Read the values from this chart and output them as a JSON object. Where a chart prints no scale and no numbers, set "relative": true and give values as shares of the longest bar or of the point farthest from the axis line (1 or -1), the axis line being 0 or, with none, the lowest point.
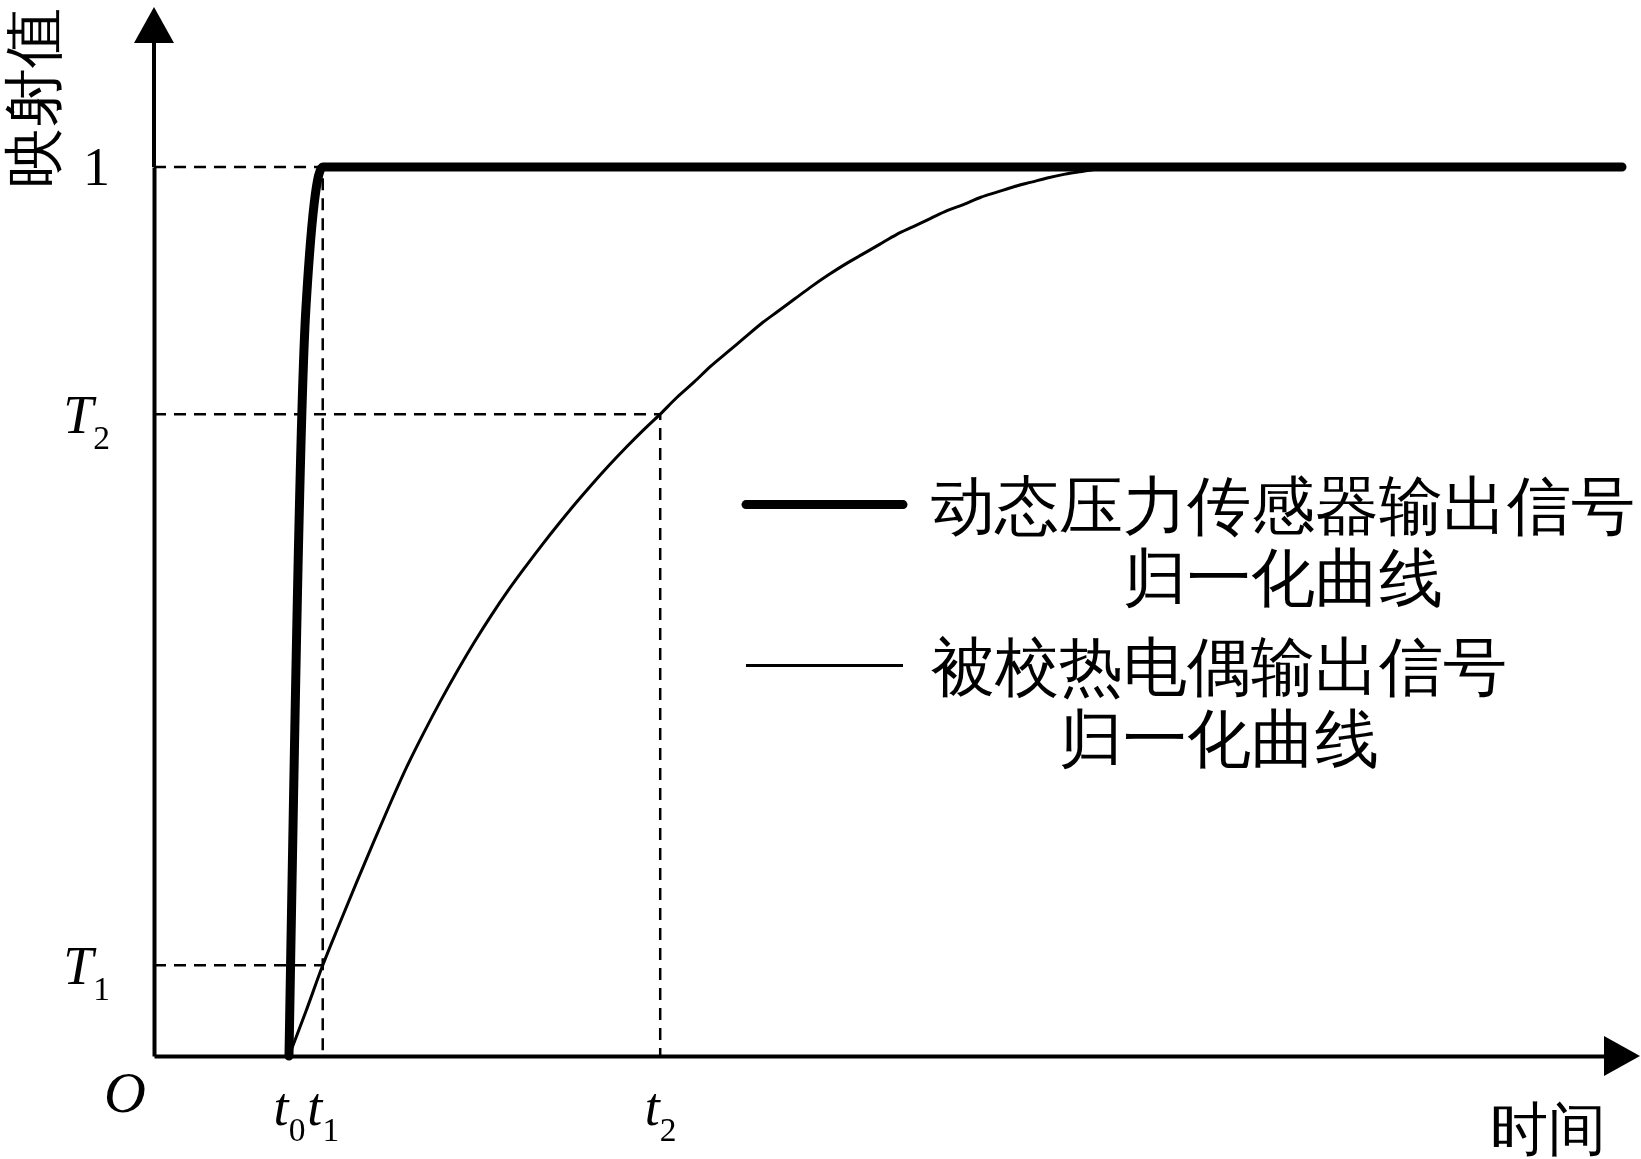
{
  "chart_data": {
    "type": "line",
    "xlabel": "时间",
    "ylabel": "映射值",
    "relative": true,
    "annotations": [
      "O"
    ],
    "legend": "right",
    "categories": [
      null,
      null,
      null,
      null,
      null,
      null,
      null,
      null,
      "t$_{0}$",
      null,
      "t$_{1}$",
      null,
      null,
      null,
      null,
      null,
      null,
      null,
      null,
      null,
      null,
      null,
      null,
      null,
      null,
      null,
      null,
      null,
      null,
      null,
      "t$_{2}$",
      null,
      null,
      null,
      null,
      null,
      null,
      null,
      null,
      null,
      null,
      null,
      null,
      null,
      null,
      null,
      null,
      null,
      null,
      null,
      null,
      null,
      null,
      null,
      null,
      null,
      null,
      null,
      null,
      null,
      null,
      null,
      null,
      null,
      null,
      null,
      null,
      null,
      null,
      null,
      null,
      null,
      null,
      null,
      null,
      null,
      null,
      null,
      null,
      null,
      null,
      null,
      null,
      null,
      null,
      null,
      null,
      null
    ],
    "series": [
      {
        "name": "动态压力传感器输出信号归一化曲线",
        "color": "#000000",
        "values": [
          null,
          null,
          null,
          null,
          null,
          null,
          null,
          null,
          0,
          0.84,
          1,
          1,
          1,
          1,
          1,
          1,
          1,
          1,
          1,
          1,
          1,
          1,
          1,
          1,
          1,
          1,
          1,
          1,
          1,
          1,
          1,
          1,
          1,
          1,
          1,
          1,
          1,
          1,
          1,
          1,
          1,
          1,
          1,
          1,
          1,
          1,
          1,
          1,
          1,
          1,
          1,
          1,
          1,
          1,
          1,
          1,
          1,
          1,
          1,
          1,
          1,
          1,
          1,
          1,
          1,
          1,
          1,
          1,
          1,
          1,
          1,
          1,
          1,
          1,
          1,
          1,
          1,
          1,
          1,
          1,
          1,
          1,
          1,
          1,
          1,
          1,
          1,
          1
        ]
      },
      {
        "name": "被校热电偶输出信号归一化曲线",
        "color": "#000000",
        "values": [
          null,
          null,
          null,
          null,
          null,
          null,
          null,
          null,
          0,
          0.05,
          0.102,
          0.149,
          0.195,
          0.24,
          0.284,
          0.326,
          0.364,
          0.4,
          0.434,
          0.466,
          0.496,
          0.524,
          0.55,
          0.575,
          0.599,
          0.622,
          0.644,
          0.665,
          0.685,
          0.704,
          0.722,
          0.741,
          0.758,
          0.776,
          0.792,
          0.808,
          0.824,
          0.838,
          0.852,
          0.866,
          0.879,
          0.891,
          0.902,
          0.913,
          0.924,
          0.933,
          0.942,
          0.951,
          0.958,
          0.966,
          0.972,
          0.978,
          0.983,
          0.988,
          0.992,
          0.995,
          0.998,
          1,
          null,
          null,
          null,
          null,
          null,
          null,
          null,
          null,
          null,
          null,
          null,
          null,
          null,
          null,
          null,
          null,
          null,
          null,
          null,
          null,
          null,
          null,
          null,
          null,
          null,
          null,
          null,
          null,
          null,
          null
        ]
      },
      {
        "name": "1",
        "type": "step",
        "color": "#000000",
        "line_style": "dashed",
        "values": [
          1,
          1,
          1,
          1,
          1,
          1,
          1,
          1,
          1,
          1,
          0,
          null,
          null,
          null,
          null,
          null,
          null,
          null,
          null,
          null,
          null,
          null,
          null,
          null,
          null,
          null,
          null,
          null,
          null,
          null,
          null,
          null,
          null,
          null,
          null,
          null,
          null,
          null,
          null,
          null,
          null,
          null,
          null,
          null,
          null,
          null,
          null,
          null,
          null,
          null,
          null,
          null,
          null,
          null,
          null,
          null,
          null,
          null,
          null,
          null,
          null,
          null,
          null,
          null,
          null,
          null,
          null,
          null,
          null,
          null,
          null,
          null,
          null,
          null,
          null,
          null,
          null,
          null,
          null,
          null,
          null,
          null,
          null,
          null,
          null,
          null,
          null,
          null
        ]
      },
      {
        "name": "T$_{2}$",
        "type": "step",
        "color": "#000000",
        "line_style": "dashed",
        "values": [
          0.722,
          0.722,
          0.722,
          0.722,
          0.722,
          0.722,
          0.722,
          0.722,
          0.722,
          0.722,
          0.722,
          0.722,
          0.722,
          0.722,
          0.722,
          0.722,
          0.722,
          0.722,
          0.722,
          0.722,
          0.722,
          0.722,
          0.722,
          0.722,
          0.722,
          0.722,
          0.722,
          0.722,
          0.722,
          0.722,
          0,
          null,
          null,
          null,
          null,
          null,
          null,
          null,
          null,
          null,
          null,
          null,
          null,
          null,
          null,
          null,
          null,
          null,
          null,
          null,
          null,
          null,
          null,
          null,
          null,
          null,
          null,
          null,
          null,
          null,
          null,
          null,
          null,
          null,
          null,
          null,
          null,
          null,
          null,
          null,
          null,
          null,
          null,
          null,
          null,
          null,
          null,
          null,
          null,
          null,
          null,
          null,
          null,
          null,
          null,
          null,
          null,
          null
        ]
      },
      {
        "name": "T$_{1}$",
        "color": "#000000",
        "line_style": "dashed",
        "values": [
          0.102,
          0.102,
          0.102,
          0.102,
          0.102,
          0.102,
          0.102,
          0.102,
          0.102,
          0.102,
          0.102,
          null,
          null,
          null,
          null,
          null,
          null,
          null,
          null,
          null,
          null,
          null,
          null,
          null,
          null,
          null,
          null,
          null,
          null,
          null,
          null,
          null,
          null,
          null,
          null,
          null,
          null,
          null,
          null,
          null,
          null,
          null,
          null,
          null,
          null,
          null,
          null,
          null,
          null,
          null,
          null,
          null,
          null,
          null,
          null,
          null,
          null,
          null,
          null,
          null,
          null,
          null,
          null,
          null,
          null,
          null,
          null,
          null,
          null,
          null,
          null,
          null,
          null,
          null,
          null,
          null,
          null,
          null,
          null,
          null,
          null,
          null,
          null,
          null,
          null,
          null,
          null,
          null
        ]
      }
    ]
  }
}
